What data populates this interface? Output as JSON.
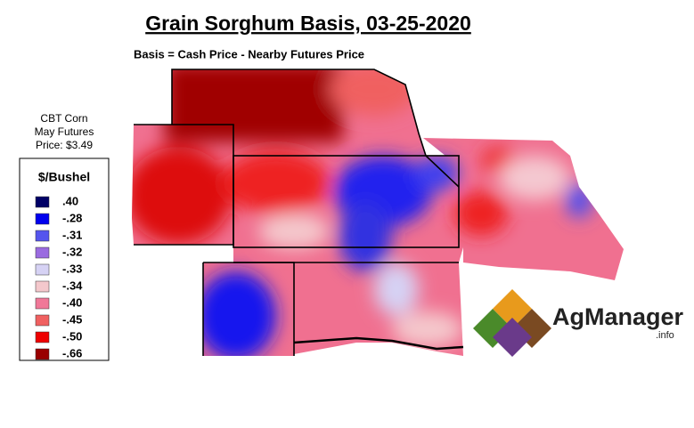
{
  "header": {
    "title": "Grain Sorghum Basis, 03-25-2020",
    "subtitle": "Basis = Cash Price - Nearby Futures Price"
  },
  "futures_note": [
    "CBT Corn",
    "May Futures",
    "Price: $3.49"
  ],
  "legend": {
    "title": "$/Bushel",
    "items": [
      {
        "label": ".40",
        "color": "#000066"
      },
      {
        "label": "-.28",
        "color": "#0000ee"
      },
      {
        "label": "-.31",
        "color": "#5555ee"
      },
      {
        "label": "-.32",
        "color": "#9a6be0"
      },
      {
        "label": "-.33",
        "color": "#d6d2f4"
      },
      {
        "label": "-.34",
        "color": "#f4c8cc"
      },
      {
        "label": "-.40",
        "color": "#f07898"
      },
      {
        "label": "-.45",
        "color": "#f06060"
      },
      {
        "label": "-.50",
        "color": "#ee0000"
      },
      {
        "label": "-.66",
        "color": "#990000"
      }
    ]
  },
  "logo": {
    "name": "AgManager",
    "suffix": ".info"
  }
}
